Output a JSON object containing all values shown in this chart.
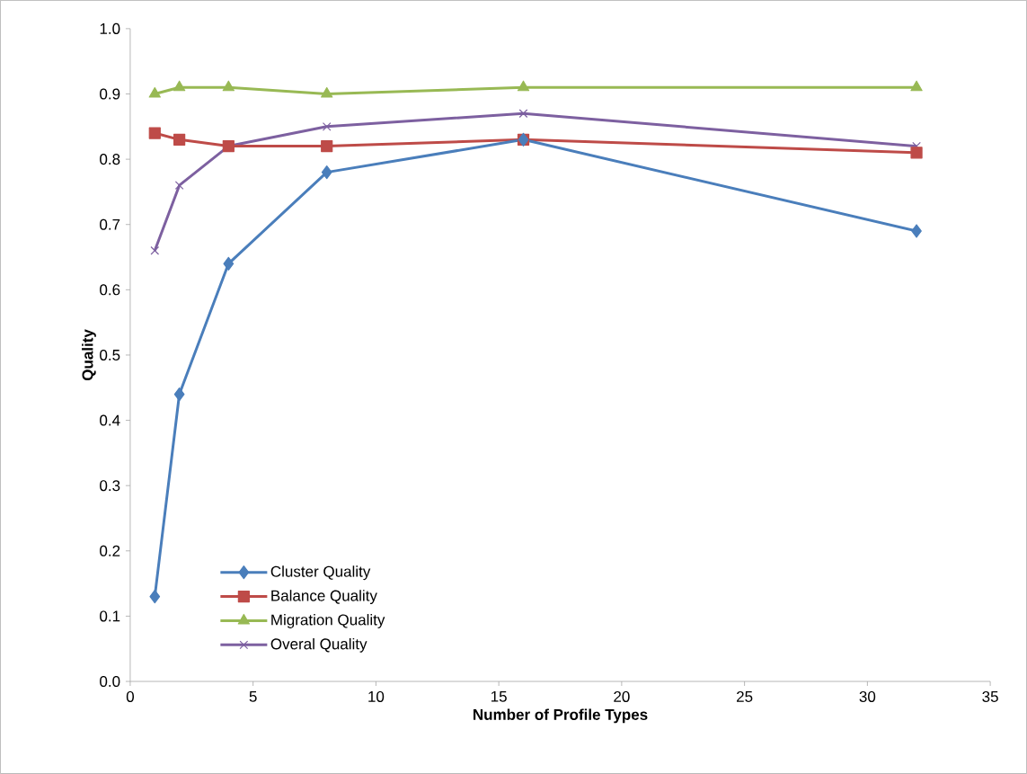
{
  "chart_data": {
    "type": "line",
    "xlabel": "Number of Profile Types",
    "ylabel": "Quality",
    "x": [
      1,
      2,
      4,
      8,
      16,
      32
    ],
    "xlim": [
      0,
      35
    ],
    "xticks": [
      0,
      5,
      10,
      15,
      20,
      25,
      30,
      35
    ],
    "ylim": [
      0,
      1
    ],
    "yticks": [
      {
        "value": 0,
        "label": "0.0"
      },
      {
        "value": 0.1,
        "label": "0.1"
      },
      {
        "value": 0.2,
        "label": "0.2"
      },
      {
        "value": 0.3,
        "label": "0.3"
      },
      {
        "value": 0.4,
        "label": "0.4"
      },
      {
        "value": 0.5,
        "label": "0.5"
      },
      {
        "value": 0.6,
        "label": "0.6"
      },
      {
        "value": 0.7,
        "label": "0.7"
      },
      {
        "value": 0.8,
        "label": "0.8"
      },
      {
        "value": 0.9,
        "label": "0.9"
      },
      {
        "value": 1,
        "label": "1.0"
      }
    ],
    "grid": false,
    "legend": "bottom left",
    "line_style": "solid",
    "series": [
      {
        "name": "Cluster Quality",
        "color": "#4a7ebb",
        "marker": "diamond",
        "values": [
          0.13,
          0.44,
          0.64,
          0.78,
          0.83,
          0.69
        ]
      },
      {
        "name": "Balance Quality",
        "color": "#be4b48",
        "marker": "square",
        "values": [
          0.84,
          0.83,
          0.82,
          0.82,
          0.83,
          0.81
        ]
      },
      {
        "name": "Migration Quality",
        "color": "#98b954",
        "marker": "triangle",
        "values": [
          0.9,
          0.91,
          0.91,
          0.9,
          0.91,
          0.91
        ]
      },
      {
        "name": "Overal Quality",
        "color": "#7d60a0",
        "marker": "cross",
        "values": [
          0.66,
          0.76,
          0.82,
          0.85,
          0.87,
          0.82
        ]
      }
    ]
  }
}
